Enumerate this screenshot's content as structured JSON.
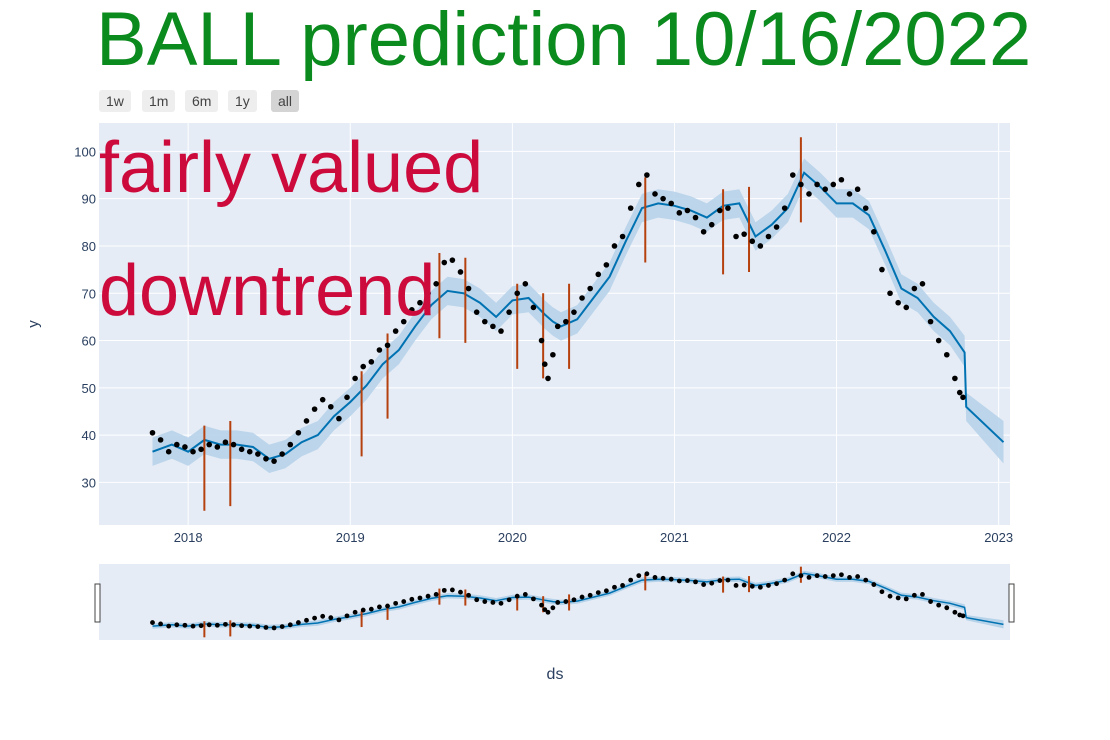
{
  "title": "BALL prediction 10/16/2022",
  "overlay": {
    "line1": "fairly valued",
    "line2": "downtrend"
  },
  "range_selector": [
    {
      "label": "1w",
      "active": false
    },
    {
      "label": "1m",
      "active": false
    },
    {
      "label": "6m",
      "active": false
    },
    {
      "label": "1y",
      "active": false
    },
    {
      "label": "all",
      "active": true
    }
  ],
  "colors": {
    "background": "#e5ecf6",
    "forecast_line": "#0072b2",
    "forecast_band": "#b7d3ea",
    "actual_points": "#000000",
    "changepoints": "#b5410f",
    "title": "#0b8a1e",
    "overlay_text": "#cc0a3b"
  },
  "chart_data": {
    "type": "line",
    "xlabel": "ds",
    "ylabel": "y",
    "xlim": [
      2017.45,
      2023.07
    ],
    "ylim": [
      21,
      106
    ],
    "xticks": [
      {
        "value": 2018,
        "label": "2018"
      },
      {
        "value": 2019,
        "label": "2019"
      },
      {
        "value": 2020,
        "label": "2020"
      },
      {
        "value": 2021,
        "label": "2021"
      },
      {
        "value": 2022,
        "label": "2022"
      },
      {
        "value": 2023,
        "label": "2023"
      }
    ],
    "yticks": [
      30,
      40,
      50,
      60,
      70,
      80,
      90,
      100
    ],
    "grid": true,
    "legend": "none",
    "series": [
      {
        "kind": "forecast",
        "x": [
          2017.78,
          2017.9,
          2018.0,
          2018.1,
          2018.2,
          2018.3,
          2018.4,
          2018.5,
          2018.6,
          2018.7,
          2018.8,
          2018.9,
          2019.0,
          2019.1,
          2019.2,
          2019.3,
          2019.4,
          2019.5,
          2019.6,
          2019.7,
          2019.8,
          2019.9,
          2020.0,
          2020.1,
          2020.2,
          2020.25,
          2020.3,
          2020.4,
          2020.5,
          2020.6,
          2020.7,
          2020.8,
          2020.9,
          2021.0,
          2021.1,
          2021.2,
          2021.3,
          2021.4,
          2021.5,
          2021.6,
          2021.7,
          2021.8,
          2021.9,
          2022.0,
          2022.1,
          2022.2,
          2022.3,
          2022.4,
          2022.5,
          2022.6,
          2022.7,
          2022.79,
          2022.8,
          2023.03
        ],
        "yhat": [
          36.5,
          38,
          36.5,
          39,
          38,
          38,
          37.5,
          35,
          36,
          38.5,
          40,
          44,
          47,
          50.5,
          55,
          58,
          63,
          67.5,
          70.5,
          70,
          68,
          65,
          68.5,
          69,
          65.5,
          64,
          63,
          64.5,
          69,
          73.5,
          81,
          88,
          89,
          88.5,
          87.5,
          86,
          88.5,
          89,
          82,
          84.5,
          88,
          95.5,
          92.5,
          89,
          89,
          86.5,
          79,
          71,
          69,
          65,
          62,
          57.5,
          46,
          38.5
        ],
        "lower": [
          33.5,
          35,
          33.5,
          36,
          35,
          35,
          34.5,
          32,
          33,
          35.5,
          37,
          41,
          44,
          47.5,
          52,
          55,
          60,
          64.5,
          67.5,
          67,
          65,
          62,
          65.5,
          66,
          62.5,
          61,
          60,
          61.5,
          66,
          70.5,
          78,
          85,
          86,
          85.5,
          84.5,
          83,
          85.5,
          86,
          79,
          81.5,
          85,
          92.5,
          89.5,
          86,
          86,
          83.5,
          76,
          68,
          66,
          62,
          59,
          54.5,
          43,
          34
        ],
        "upper": [
          39.5,
          41,
          39.5,
          42,
          41,
          41,
          40.5,
          38,
          39,
          41.5,
          43,
          47,
          50,
          53.5,
          58,
          61,
          66,
          70.5,
          73.5,
          73,
          71,
          68,
          71.5,
          72,
          68.5,
          67,
          66,
          67.5,
          72,
          76.5,
          84,
          91,
          92,
          91.5,
          90.5,
          89,
          91.5,
          92,
          85,
          87.5,
          91,
          98.5,
          95.5,
          92,
          92,
          89.5,
          82,
          74,
          72,
          68,
          65,
          61,
          49,
          43
        ]
      },
      {
        "kind": "actual",
        "x": [
          2017.78,
          2017.83,
          2017.88,
          2017.93,
          2017.98,
          2018.03,
          2018.08,
          2018.13,
          2018.18,
          2018.23,
          2018.28,
          2018.33,
          2018.38,
          2018.43,
          2018.48,
          2018.53,
          2018.58,
          2018.63,
          2018.68,
          2018.73,
          2018.78,
          2018.83,
          2018.88,
          2018.93,
          2018.98,
          2019.03,
          2019.08,
          2019.13,
          2019.18,
          2019.23,
          2019.28,
          2019.33,
          2019.38,
          2019.43,
          2019.48,
          2019.53,
          2019.58,
          2019.63,
          2019.68,
          2019.73,
          2019.78,
          2019.83,
          2019.88,
          2019.93,
          2019.98,
          2020.03,
          2020.08,
          2020.13,
          2020.18,
          2020.2,
          2020.22,
          2020.25,
          2020.28,
          2020.33,
          2020.38,
          2020.43,
          2020.48,
          2020.53,
          2020.58,
          2020.63,
          2020.68,
          2020.73,
          2020.78,
          2020.83,
          2020.88,
          2020.93,
          2020.98,
          2021.03,
          2021.08,
          2021.13,
          2021.18,
          2021.23,
          2021.28,
          2021.33,
          2021.38,
          2021.43,
          2021.48,
          2021.53,
          2021.58,
          2021.63,
          2021.68,
          2021.73,
          2021.78,
          2021.83,
          2021.88,
          2021.93,
          2021.98,
          2022.03,
          2022.08,
          2022.13,
          2022.18,
          2022.23,
          2022.28,
          2022.33,
          2022.38,
          2022.43,
          2022.48,
          2022.53,
          2022.58,
          2022.63,
          2022.68,
          2022.73,
          2022.76,
          2022.78
        ],
        "y": [
          40.5,
          39,
          36.5,
          38,
          37.5,
          36.5,
          37,
          38,
          37.5,
          38.5,
          38,
          37,
          36.5,
          36,
          35,
          34.5,
          36,
          38,
          40.5,
          43,
          45.5,
          47.5,
          46,
          43.5,
          48,
          52,
          54.5,
          55.5,
          58,
          59,
          62,
          64,
          66.5,
          68,
          70,
          72,
          76.5,
          77,
          74.5,
          71,
          66,
          64,
          63,
          62,
          66,
          70,
          72,
          67,
          60,
          55,
          52,
          57,
          63,
          64,
          66,
          69,
          71,
          74,
          76,
          80,
          82,
          88,
          93,
          95,
          91,
          90,
          89,
          87,
          87.5,
          86,
          83,
          84.5,
          87.5,
          88,
          82,
          82.5,
          81,
          80,
          82,
          84,
          88,
          95,
          93,
          91,
          93,
          92,
          93,
          94,
          91,
          92,
          88,
          83,
          75,
          70,
          68,
          67,
          71,
          72,
          64,
          60,
          57,
          52,
          49,
          48
        ]
      }
    ],
    "changepoints": [
      {
        "x": 2018.1,
        "low": 24,
        "high": 42
      },
      {
        "x": 2018.26,
        "low": 25,
        "high": 43
      },
      {
        "x": 2019.07,
        "low": 35.5,
        "high": 53.5
      },
      {
        "x": 2019.23,
        "low": 43.5,
        "high": 61.5
      },
      {
        "x": 2019.55,
        "low": 60.5,
        "high": 78.5
      },
      {
        "x": 2019.71,
        "low": 59.5,
        "high": 77.5
      },
      {
        "x": 2020.03,
        "low": 54,
        "high": 72
      },
      {
        "x": 2020.19,
        "low": 52,
        "high": 70
      },
      {
        "x": 2020.35,
        "low": 54,
        "high": 72
      },
      {
        "x": 2020.82,
        "low": 76.5,
        "high": 94.5
      },
      {
        "x": 2021.3,
        "low": 74,
        "high": 92
      },
      {
        "x": 2021.46,
        "low": 74.5,
        "high": 92.5
      },
      {
        "x": 2021.78,
        "low": 85,
        "high": 103
      }
    ]
  }
}
